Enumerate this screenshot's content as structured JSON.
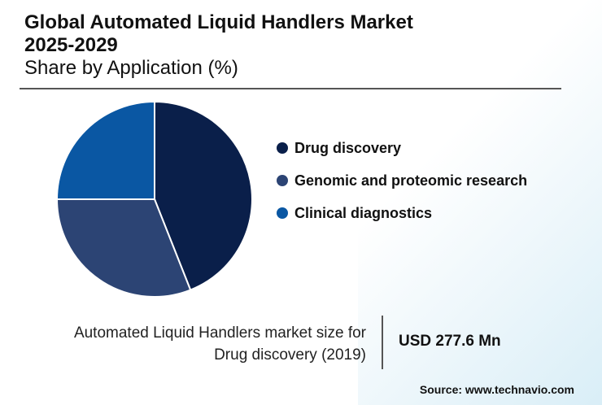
{
  "header": {
    "title_line1": "Global Automated Liquid Handlers Market",
    "title_line2": "2025-2029",
    "subtitle": "Share by Application (%)"
  },
  "chart_data": {
    "type": "pie",
    "categories": [
      "Drug discovery",
      "Genomic and proteomic research",
      "Clinical diagnostics"
    ],
    "values": [
      44,
      31,
      25
    ],
    "colors": [
      "#0a1f4a",
      "#2c4474",
      "#0a57a3"
    ],
    "legend_position": "right"
  },
  "legend": {
    "items": [
      {
        "label": "Drug discovery",
        "color": "#0a1f4a"
      },
      {
        "label": "Genomic and proteomic research",
        "color": "#2c4474"
      },
      {
        "label": "Clinical diagnostics",
        "color": "#0a57a3"
      }
    ]
  },
  "footer": {
    "caption_line1": "Automated Liquid Handlers market size for",
    "caption_line2": "Drug discovery (2019)",
    "value": "USD 277.6 Mn",
    "source": "Source: www.technavio.com"
  }
}
